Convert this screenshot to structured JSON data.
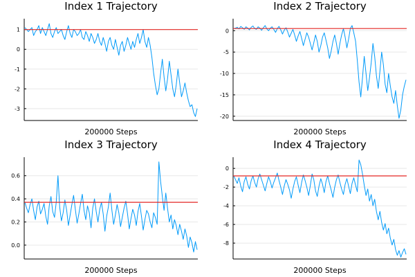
{
  "colors": {
    "series": "#009af9",
    "reference": "#e32623",
    "grid": "#e8e8e8"
  },
  "chart_data": [
    {
      "type": "line",
      "title": "Index 1 Trajectory",
      "xlabel": "200000 Steps",
      "ylabel": "",
      "ylim": [
        -3.6,
        1.55
      ],
      "yticks": [
        1,
        0,
        -1,
        -2,
        -3
      ],
      "reference_line": 1.0,
      "grid": true,
      "series": [
        {
          "values": [
            1.1,
            1.0,
            0.9,
            1.0,
            1.1,
            0.7,
            0.9,
            1.0,
            1.2,
            0.8,
            1.1,
            0.9,
            0.7,
            1.0,
            1.3,
            0.8,
            0.6,
            0.9,
            1.1,
            0.8,
            0.9,
            1.0,
            0.7,
            0.5,
            0.9,
            1.2,
            0.8,
            0.6,
            1.0,
            0.9,
            0.7,
            0.8,
            1.0,
            0.6,
            0.5,
            0.9,
            0.7,
            0.4,
            0.8,
            0.6,
            0.3,
            0.5,
            0.8,
            0.4,
            0.2,
            0.6,
            0.3,
            -0.1,
            0.4,
            0.6,
            0.2,
            0.0,
            0.5,
            0.1,
            -0.3,
            0.2,
            0.4,
            -0.1,
            0.2,
            0.6,
            0.3,
            0.0,
            0.4,
            0.1,
            0.5,
            0.8,
            0.3,
            0.6,
            1.0,
            0.4,
            0.1,
            0.6,
            0.2,
            -0.4,
            -1.2,
            -1.8,
            -2.3,
            -2.0,
            -1.2,
            -0.5,
            -1.4,
            -2.1,
            -1.5,
            -0.6,
            -1.3,
            -2.0,
            -2.4,
            -1.8,
            -1.0,
            -1.7,
            -2.4,
            -2.1,
            -1.7,
            -2.2,
            -2.6,
            -2.9,
            -2.8,
            -3.2,
            -3.4,
            -3.0
          ]
        }
      ]
    },
    {
      "type": "line",
      "title": "Index 2 Trajectory",
      "xlabel": "200000 Steps",
      "ylabel": "",
      "ylim": [
        -21,
        2.8
      ],
      "yticks": [
        0,
        -5,
        -10,
        -15,
        -20
      ],
      "reference_line": 0.5,
      "grid": true,
      "series": [
        {
          "values": [
            0.5,
            0.6,
            0.8,
            0.4,
            1.0,
            0.7,
            0.3,
            0.9,
            0.6,
            0.2,
            0.8,
            1.1,
            0.5,
            0.3,
            0.9,
            0.6,
            0.1,
            0.7,
            1.2,
            0.4,
            0.0,
            0.6,
            0.9,
            0.3,
            -0.4,
            0.5,
            1.0,
            0.2,
            -0.8,
            0.1,
            0.7,
            -0.3,
            -1.5,
            -0.6,
            0.3,
            -1.0,
            -2.5,
            -1.2,
            -0.2,
            -1.8,
            -3.5,
            -2.0,
            -0.5,
            -1.5,
            -3.0,
            -4.5,
            -2.8,
            -1.0,
            -2.5,
            -5.0,
            -3.5,
            -1.5,
            -0.5,
            -2.2,
            -4.0,
            -6.5,
            -4.8,
            -2.5,
            -1.0,
            -3.0,
            -5.5,
            -3.0,
            -1.0,
            0.5,
            -1.5,
            -4.0,
            -2.0,
            0.5,
            1.2,
            -0.5,
            -2.5,
            -7.0,
            -12.0,
            -15.5,
            -11.0,
            -6.0,
            -10.0,
            -14.0,
            -11.0,
            -7.5,
            -3.0,
            -6.0,
            -10.5,
            -13.5,
            -9.5,
            -5.0,
            -8.0,
            -12.5,
            -14.5,
            -10.0,
            -13.0,
            -15.5,
            -17.0,
            -14.0,
            -17.5,
            -20.5,
            -18.5,
            -15.0,
            -13.0,
            -11.5
          ]
        }
      ]
    },
    {
      "type": "line",
      "title": "Index 3 Trajectory",
      "xlabel": "200000 Steps",
      "ylabel": "",
      "ylim": [
        -0.12,
        0.76
      ],
      "yticks": [
        0.0,
        0.2,
        0.4,
        0.6
      ],
      "reference_line": 0.37,
      "grid": true,
      "series": [
        {
          "values": [
            0.37,
            0.32,
            0.28,
            0.35,
            0.4,
            0.3,
            0.22,
            0.33,
            0.38,
            0.27,
            0.31,
            0.36,
            0.25,
            0.18,
            0.34,
            0.42,
            0.29,
            0.24,
            0.37,
            0.6,
            0.33,
            0.21,
            0.28,
            0.39,
            0.3,
            0.17,
            0.26,
            0.35,
            0.43,
            0.31,
            0.19,
            0.27,
            0.36,
            0.44,
            0.3,
            0.22,
            0.34,
            0.28,
            0.15,
            0.32,
            0.4,
            0.29,
            0.2,
            0.31,
            0.37,
            0.27,
            0.12,
            0.25,
            0.33,
            0.45,
            0.3,
            0.18,
            0.26,
            0.35,
            0.28,
            0.16,
            0.24,
            0.32,
            0.38,
            0.27,
            0.14,
            0.23,
            0.31,
            0.26,
            0.17,
            0.29,
            0.36,
            0.25,
            0.13,
            0.22,
            0.3,
            0.27,
            0.2,
            0.15,
            0.28,
            0.24,
            0.18,
            0.72,
            0.55,
            0.42,
            0.3,
            0.45,
            0.32,
            0.2,
            0.26,
            0.14,
            0.22,
            0.17,
            0.09,
            0.18,
            0.12,
            0.05,
            0.14,
            0.08,
            -0.02,
            0.07,
            0.02,
            -0.06,
            0.03,
            -0.04
          ]
        }
      ]
    },
    {
      "type": "line",
      "title": "Index 4 Trajectory",
      "xlabel": "200000 Steps",
      "ylabel": "",
      "ylim": [
        -9.7,
        1.2
      ],
      "yticks": [
        0,
        -2,
        -4,
        -6,
        -8
      ],
      "reference_line": -0.8,
      "grid": true,
      "series": [
        {
          "values": [
            -0.8,
            -1.2,
            -1.6,
            -1.0,
            -1.9,
            -2.5,
            -1.4,
            -0.9,
            -1.7,
            -2.2,
            -1.3,
            -0.8,
            -1.5,
            -2.0,
            -1.1,
            -0.6,
            -1.2,
            -1.8,
            -2.4,
            -1.6,
            -0.9,
            -1.4,
            -2.1,
            -1.5,
            -1.0,
            -0.5,
            -1.3,
            -2.0,
            -2.8,
            -1.9,
            -1.2,
            -1.7,
            -2.3,
            -3.2,
            -2.2,
            -1.4,
            -0.9,
            -1.8,
            -2.6,
            -1.5,
            -0.7,
            -1.3,
            -2.0,
            -2.9,
            -1.8,
            -0.6,
            -1.2,
            -2.4,
            -3.0,
            -1.9,
            -1.1,
            -1.7,
            -2.6,
            -1.4,
            -0.8,
            -1.6,
            -2.3,
            -3.1,
            -2.0,
            -1.2,
            -0.7,
            -1.5,
            -2.2,
            -2.8,
            -1.7,
            -1.1,
            -1.9,
            -2.7,
            -1.6,
            -1.0,
            -1.8,
            -2.5,
            0.9,
            0.4,
            -0.6,
            -1.8,
            -2.9,
            -2.2,
            -3.5,
            -2.8,
            -4.0,
            -3.3,
            -4.6,
            -5.5,
            -4.6,
            -5.8,
            -6.6,
            -5.9,
            -7.0,
            -6.4,
            -7.5,
            -8.2,
            -7.6,
            -8.7,
            -9.3,
            -8.8,
            -9.5,
            -9.0,
            -8.6,
            -9.2
          ]
        }
      ]
    }
  ]
}
